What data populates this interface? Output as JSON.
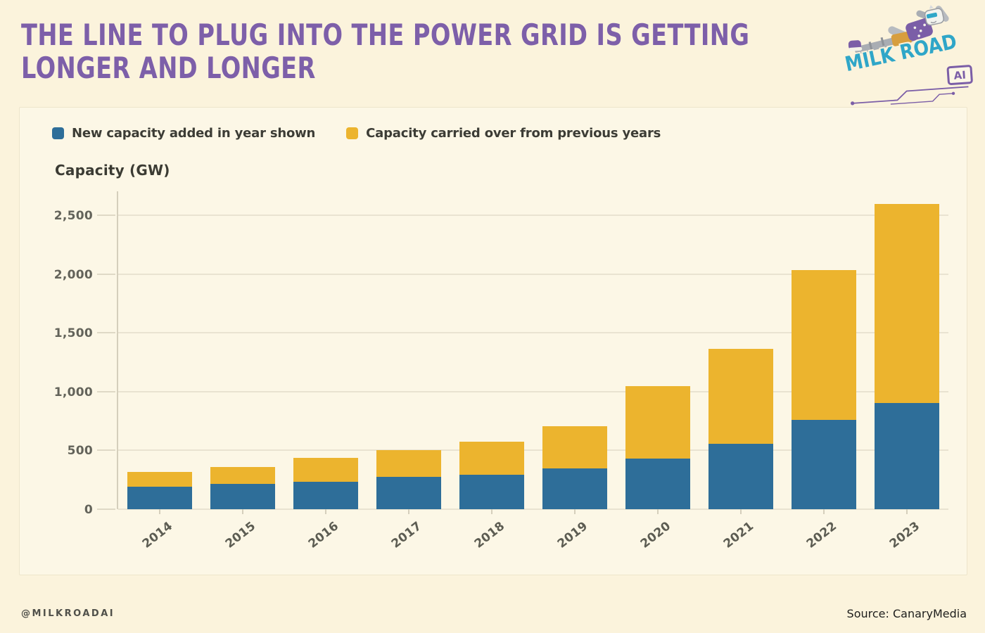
{
  "header": {
    "title": "THE LINE TO PLUG INTO THE POWER GRID IS GETTING LONGER AND LONGER"
  },
  "logo": {
    "brand": "MILK ROAD",
    "badge": "AI"
  },
  "card": {
    "legend": [
      {
        "label": "New capacity added in year shown",
        "color": "#2E6E99"
      },
      {
        "label": "Capacity carried over from previous years",
        "color": "#ECB42E"
      }
    ]
  },
  "chart_data": {
    "type": "bar",
    "stacked": true,
    "title": "",
    "ylabel": "Capacity (GW)",
    "xlabel": "",
    "grid": "horizontal",
    "legend_position": "top",
    "ylim": [
      0,
      2700
    ],
    "categories": [
      "2014",
      "2015",
      "2016",
      "2017",
      "2018",
      "2019",
      "2020",
      "2021",
      "2022",
      "2023"
    ],
    "series": [
      {
        "name": "New capacity added in year shown",
        "color": "#2E6E99",
        "values": [
          190,
          215,
          235,
          275,
          295,
          345,
          430,
          555,
          760,
          905
        ]
      },
      {
        "name": "Capacity carried over from previous years",
        "color": "#ECB42E",
        "values": [
          130,
          145,
          200,
          225,
          280,
          360,
          615,
          810,
          1275,
          1690
        ]
      }
    ],
    "totals": [
      320,
      360,
      435,
      500,
      575,
      705,
      1045,
      1365,
      2035,
      2595
    ],
    "yticks": [
      {
        "value": 0,
        "label": "0"
      },
      {
        "value": 500,
        "label": "500"
      },
      {
        "value": 1000,
        "label": "1,000"
      },
      {
        "value": 1500,
        "label": "1,500"
      },
      {
        "value": 2000,
        "label": "2,000"
      },
      {
        "value": 2500,
        "label": "2,500"
      }
    ]
  },
  "footer": {
    "handle": "@MILKROADAI",
    "source": "Source: CanaryMedia"
  }
}
